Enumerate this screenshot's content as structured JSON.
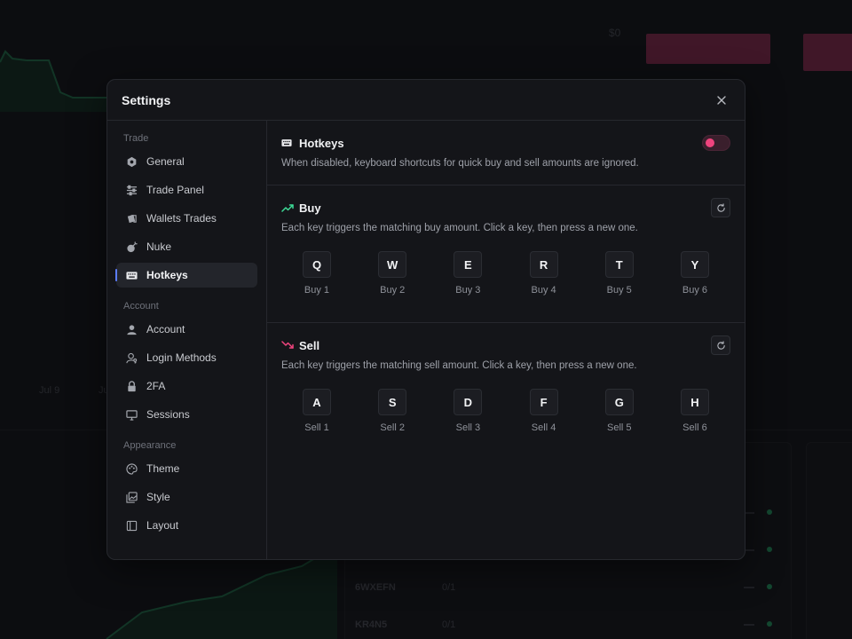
{
  "background": {
    "price_label": "$0",
    "axis_labels": [
      "Jul 9",
      "Ju"
    ],
    "rows": [
      {
        "code": "6WXEFN",
        "ratio": "0/1"
      },
      {
        "code": "KR4N5",
        "ratio": "0/1"
      }
    ]
  },
  "modal": {
    "title": "Settings",
    "close_icon": "close-icon"
  },
  "sidebar": {
    "sections": [
      {
        "label": "Trade",
        "items": [
          {
            "label": "General",
            "icon": "hexagon-gear-icon"
          },
          {
            "label": "Trade Panel",
            "icon": "sliders-icon"
          },
          {
            "label": "Wallets Trades",
            "icon": "wallet-cards-icon"
          },
          {
            "label": "Nuke",
            "icon": "bomb-icon"
          },
          {
            "label": "Hotkeys",
            "icon": "keyboard-icon",
            "active": true
          }
        ]
      },
      {
        "label": "Account",
        "items": [
          {
            "label": "Account",
            "icon": "user-icon"
          },
          {
            "label": "Login Methods",
            "icon": "user-key-icon"
          },
          {
            "label": "2FA",
            "icon": "lock-icon"
          },
          {
            "label": "Sessions",
            "icon": "monitor-icon"
          }
        ]
      },
      {
        "label": "Appearance",
        "items": [
          {
            "label": "Theme",
            "icon": "palette-icon"
          },
          {
            "label": "Style",
            "icon": "images-icon"
          },
          {
            "label": "Layout",
            "icon": "panel-left-icon"
          }
        ]
      }
    ]
  },
  "hotkeys": {
    "title": "Hotkeys",
    "description": "When disabled, keyboard shortcuts for quick buy and sell amounts are ignored.",
    "enabled": true,
    "toggle_color": "#f0447e"
  },
  "buy": {
    "title": "Buy",
    "description": "Each key triggers the matching buy amount. Click a key, then press a new one.",
    "accent": "#3ddc97",
    "keys": [
      {
        "key": "Q",
        "label": "Buy 1"
      },
      {
        "key": "W",
        "label": "Buy 2"
      },
      {
        "key": "E",
        "label": "Buy 3"
      },
      {
        "key": "R",
        "label": "Buy 4"
      },
      {
        "key": "T",
        "label": "Buy 5"
      },
      {
        "key": "Y",
        "label": "Buy 6"
      }
    ]
  },
  "sell": {
    "title": "Sell",
    "description": "Each key triggers the matching sell amount. Click a key, then press a new one.",
    "accent": "#f0447e",
    "keys": [
      {
        "key": "A",
        "label": "Sell 1"
      },
      {
        "key": "S",
        "label": "Sell 2"
      },
      {
        "key": "D",
        "label": "Sell 3"
      },
      {
        "key": "F",
        "label": "Sell 4"
      },
      {
        "key": "G",
        "label": "Sell 5"
      },
      {
        "key": "H",
        "label": "Sell 6"
      }
    ]
  }
}
